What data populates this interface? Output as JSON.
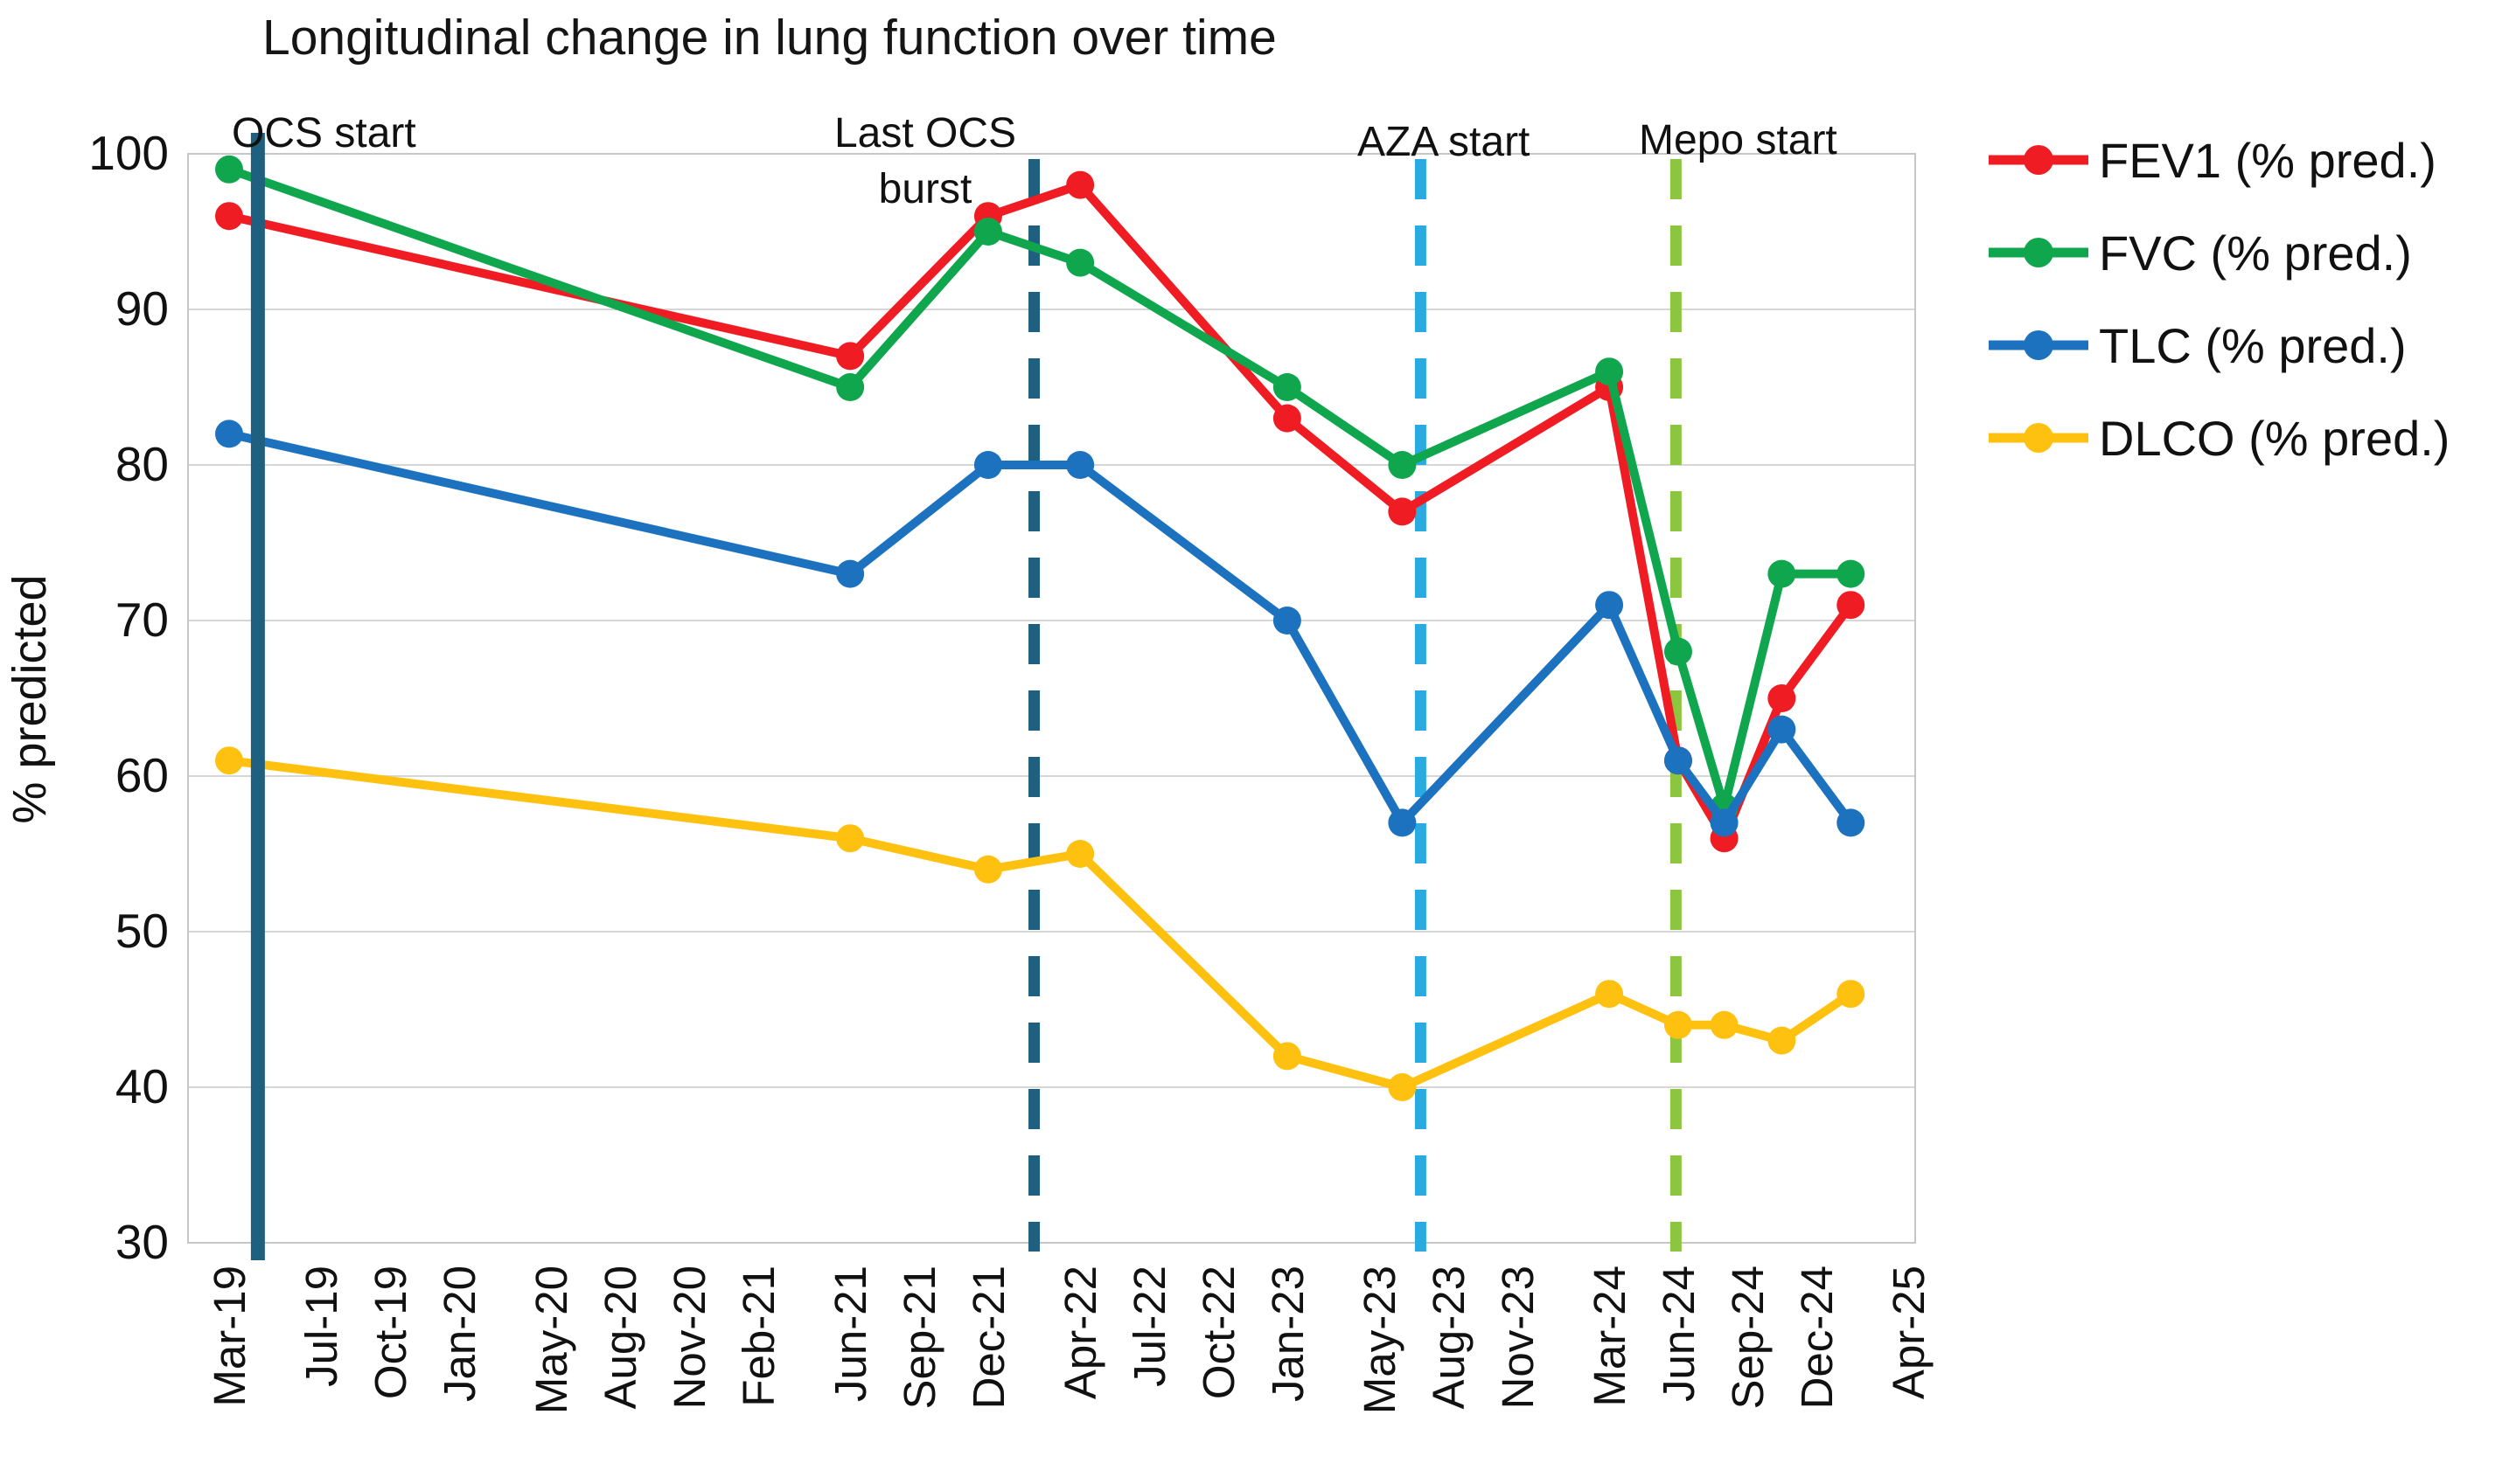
{
  "chart": {
    "title": "Longitudinal change in lung function over time",
    "y_axis_label": "% predicted"
  },
  "chart_data": {
    "type": "line",
    "title": "Longitudinal change in lung function over time",
    "xlabel": "",
    "ylabel": "% predicted",
    "ylim": [
      30,
      100
    ],
    "y_ticks": [
      30,
      40,
      50,
      60,
      70,
      80,
      90,
      100
    ],
    "grid": true,
    "legend_position": "right",
    "x_tick_labels": [
      "Mar-19",
      "Jul-19",
      "Oct-19",
      "Jan-20",
      "May-20",
      "Aug-20",
      "Nov-20",
      "Feb-21",
      "Jun-21",
      "Sep-21",
      "Dec-21",
      "Apr-22",
      "Jul-22",
      "Oct-22",
      "Jan-23",
      "May-23",
      "Aug-23",
      "Nov-23",
      "Mar-24",
      "Jun-24",
      "Sep-24",
      "Dec-24",
      "Apr-25"
    ],
    "x_tick_months": [
      0,
      4,
      7,
      10,
      14,
      17,
      20,
      23,
      27,
      30,
      33,
      37,
      40,
      43,
      46,
      50,
      53,
      56,
      60,
      63,
      66,
      69,
      73
    ],
    "x_total_months": 73,
    "point_dates_approx": [
      "Mar-19",
      "Jun-21",
      "Dec-21",
      "Apr-22",
      "Jan-23",
      "Jun-23",
      "Mar-24",
      "Jun-24",
      "Aug-24",
      "Oct-24",
      "Jan-25"
    ],
    "point_x_months": [
      0,
      27,
      33,
      37,
      46,
      51,
      60,
      63,
      65,
      67.5,
      70.5
    ],
    "series": [
      {
        "name": "FEV1 (% pred.)",
        "color": "#EF1C23",
        "values": [
          96,
          87,
          96,
          98,
          83,
          77,
          85,
          61,
          56,
          65,
          71
        ]
      },
      {
        "name": "FVC (% pred.)",
        "color": "#10A64E",
        "values": [
          99,
          85,
          95,
          93,
          85,
          80,
          86,
          68,
          58,
          73,
          73
        ]
      },
      {
        "name": "TLC (% pred.)",
        "color": "#1C72BF",
        "values": [
          82,
          73,
          80,
          80,
          70,
          57,
          71,
          61,
          57,
          63,
          57
        ]
      },
      {
        "name": "DLCO (% pred.)",
        "color": "#FFC110",
        "values": [
          61,
          56,
          54,
          55,
          42,
          40,
          46,
          44,
          44,
          43,
          46
        ]
      }
    ],
    "annotations": [
      {
        "id": "ocs-start",
        "label_lines": [
          "OCS start"
        ],
        "x_month": 1.25,
        "style": "solid",
        "color": "#1F5F7F"
      },
      {
        "id": "last-ocs",
        "label_lines": [
          "Last OCS",
          "burst"
        ],
        "x_month": 35,
        "style": "dashed",
        "color": "#1F5F7F"
      },
      {
        "id": "aza-start",
        "label_lines": [
          "AZA start"
        ],
        "x_month": 51.8,
        "style": "dashed",
        "color": "#29ABE2"
      },
      {
        "id": "mepo-start",
        "label_lines": [
          "Mepo start"
        ],
        "x_month": 62.9,
        "style": "dashed",
        "color": "#8CC63F"
      }
    ]
  }
}
